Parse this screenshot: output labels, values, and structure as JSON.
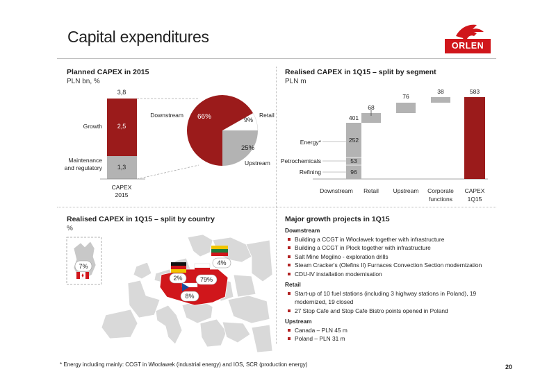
{
  "title": "Capital expenditures",
  "brand": "ORLEN",
  "page_number": "20",
  "footnote": "* Energy including mainly: CCGT in Włocławek (industrial energy) and IOS, SCR (production energy)",
  "colors": {
    "dark_red": "#9b1b1b",
    "grey": "#b3b3b3",
    "brand_red": "#d0161b"
  },
  "planned": {
    "title": "Planned CAPEX in 2015",
    "unit": "PLN bn, %",
    "total": "3,8",
    "growth_label": "Growth",
    "growth_value": "2,5",
    "maint_label_1": "Maintenance",
    "maint_label_2": "and regulatory",
    "maint_value": "1,3",
    "cat_1": "CAPEX",
    "cat_2": "2015",
    "pie": {
      "downstream_label": "Downstream",
      "downstream_pct": "66%",
      "retail_label": "Retail",
      "retail_pct": "9%",
      "upstream_label": "Upstream",
      "upstream_pct": "25%"
    }
  },
  "realised_segment": {
    "title": "Realised CAPEX in 1Q15 – split by segment",
    "unit": "PLN m",
    "downstream_total": "401",
    "energy_label": "Energy*",
    "energy_value": "252",
    "petro_label": "Petrochemicals",
    "petro_value": "53",
    "refining_label": "Refining",
    "refining_value": "96",
    "retail_value": "68",
    "upstream_value": "76",
    "corporate_value": "38",
    "total_value": "583",
    "cat_downstream": "Downstream",
    "cat_retail": "Retail",
    "cat_upstream": "Upstream",
    "cat_corporate_1": "Corporate",
    "cat_corporate_2": "functions",
    "cat_capex_1": "CAPEX",
    "cat_capex_2": "1Q15"
  },
  "realised_country": {
    "title": "Realised CAPEX in 1Q15 – split by country",
    "unit": "%",
    "canada": "7%",
    "germany": "2%",
    "poland": "79%",
    "czech": "8%",
    "lithuania": "4%"
  },
  "projects": {
    "title": "Major growth projects in 1Q15",
    "groups": [
      {
        "name": "Downstream",
        "items": [
          "Building a CCGT in Włocławek together with infrastructure",
          "Building a CCGT in Płock together with infrastructure",
          "Salt Mine Mogilno - exploration drills",
          "Steam Cracker's (Olefins II) Furnaces Convection Section modernization",
          "CDU-IV installation modernisation"
        ]
      },
      {
        "name": "Retail",
        "items": [
          "Start-up of 10 fuel stations (including 3 highway stations in Poland), 19 modernized, 19 closed",
          "27 Stop Cafe and Stop Cafe Bistro points opened in Poland"
        ]
      },
      {
        "name": "Upstream",
        "items": [
          "Canada – PLN 45 m",
          "Poland – PLN 31 m"
        ]
      }
    ]
  }
}
